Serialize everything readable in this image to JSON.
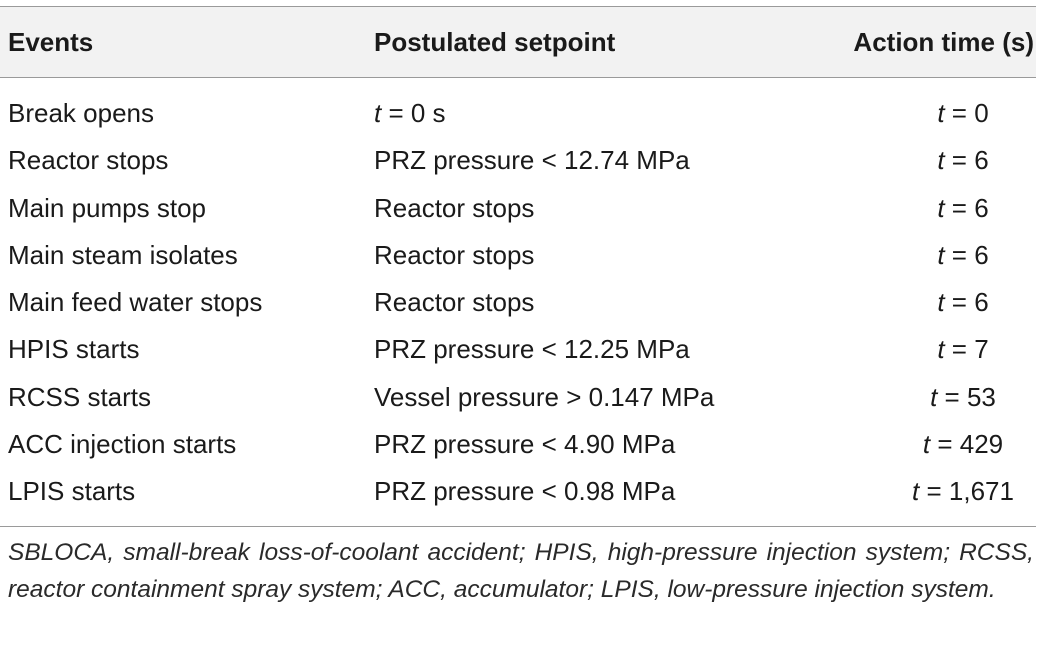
{
  "table": {
    "headers": {
      "events": "Events",
      "setpoint": "Postulated setpoint",
      "time": "Action time (s)"
    },
    "rows": [
      {
        "event": "Break opens",
        "setpoint_var": "t",
        "setpoint_rest": " = 0 s",
        "time_var": "t",
        "time_rest": " = 0"
      },
      {
        "event": "Reactor stops",
        "setpoint_var": "",
        "setpoint_rest": "PRZ pressure < 12.74 MPa",
        "time_var": "t",
        "time_rest": " = 6"
      },
      {
        "event": "Main pumps stop",
        "setpoint_var": "",
        "setpoint_rest": "Reactor stops",
        "time_var": "t",
        "time_rest": " = 6"
      },
      {
        "event": "Main steam isolates",
        "setpoint_var": "",
        "setpoint_rest": "Reactor stops",
        "time_var": "t",
        "time_rest": " = 6"
      },
      {
        "event": "Main feed water stops",
        "setpoint_var": "",
        "setpoint_rest": "Reactor stops",
        "time_var": "t",
        "time_rest": " = 6"
      },
      {
        "event": "HPIS starts",
        "setpoint_var": "",
        "setpoint_rest": "PRZ pressure < 12.25 MPa",
        "time_var": "t",
        "time_rest": " = 7"
      },
      {
        "event": "RCSS starts",
        "setpoint_var": "",
        "setpoint_rest": "Vessel pressure > 0.147 MPa",
        "time_var": "t",
        "time_rest": " = 53"
      },
      {
        "event": "ACC injection starts",
        "setpoint_var": "",
        "setpoint_rest": "PRZ pressure < 4.90 MPa",
        "time_var": "t",
        "time_rest": " = 429"
      },
      {
        "event": "LPIS starts",
        "setpoint_var": "",
        "setpoint_rest": "PRZ pressure < 0.98 MPa",
        "time_var": "t",
        "time_rest": " = 1,671"
      }
    ],
    "footnote": "SBLOCA, small-break loss-of-coolant accident; HPIS, high-pressure injection system; RCSS, reactor containment spray system; ACC, accumulator; LPIS, low-pressure injection system."
  }
}
